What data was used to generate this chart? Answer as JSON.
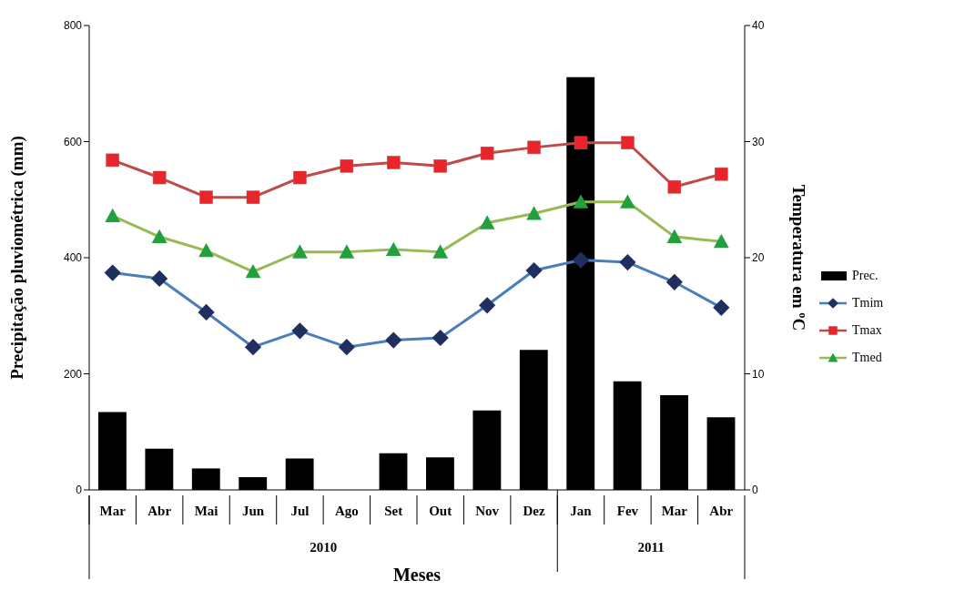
{
  "chart_data": {
    "type": "bar",
    "xlabel": "Meses",
    "ylabel": "Precipitação pluviométrica (mm)",
    "y2label": "Temperatura em ºC",
    "categories": [
      "Mar",
      "Abr",
      "Mai",
      "Jun",
      "Jul",
      "Ago",
      "Set",
      "Out",
      "Nov",
      "Dez",
      "Jan",
      "Fev",
      "Mar",
      "Abr"
    ],
    "annotations": [
      "2010",
      "2011"
    ],
    "series": [
      {
        "name": "Prec.",
        "color": "#000000",
        "values": [
          134,
          71,
          37,
          22,
          54,
          0,
          63,
          56,
          137,
          241,
          711,
          187,
          163,
          125
        ]
      },
      {
        "name": "Tmim",
        "type": "line",
        "axis": "y2",
        "marker": "diamond",
        "color": "#4a7ebb",
        "values": [
          18.7,
          18.2,
          15.3,
          12.3,
          13.7,
          12.3,
          12.9,
          13.1,
          15.9,
          18.9,
          19.8,
          19.6,
          17.9,
          15.7
        ]
      },
      {
        "name": "Tmax",
        "type": "line",
        "axis": "y2",
        "marker": "square",
        "color": "#be4b48",
        "values": [
          28.4,
          26.9,
          25.2,
          25.2,
          26.9,
          27.9,
          28.2,
          27.9,
          29.0,
          29.5,
          29.9,
          29.9,
          26.1,
          27.2
        ]
      },
      {
        "name": "Tmed",
        "type": "line",
        "axis": "y2",
        "marker": "triangle",
        "color": "#98b954",
        "values": [
          23.6,
          21.8,
          20.6,
          18.8,
          20.5,
          20.5,
          20.7,
          20.5,
          23.0,
          23.8,
          24.8,
          24.8,
          21.8,
          21.4
        ]
      }
    ],
    "ylim": [
      0,
      800
    ],
    "yticks": [
      0,
      200,
      400,
      600,
      800
    ],
    "y2lim": [
      0,
      40
    ],
    "y2ticks": [
      0,
      10,
      20,
      30,
      40
    ],
    "legend": "right"
  }
}
